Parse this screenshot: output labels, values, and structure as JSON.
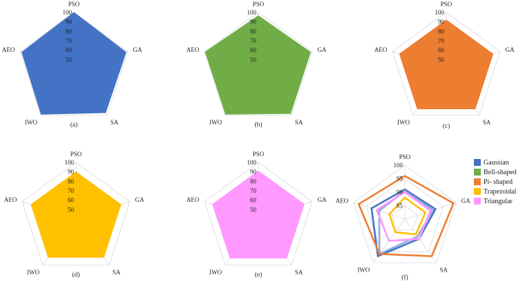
{
  "chart_data": [
    {
      "type": "radar",
      "panel_label": "(a)",
      "series_name": "Gaussian",
      "color": "#4472c4",
      "axes": [
        "PSO",
        "GA",
        "SA",
        "IWO",
        "AEO"
      ],
      "rlim": [
        40,
        100
      ],
      "ticks": [
        50,
        60,
        70,
        80,
        90,
        100
      ],
      "values": [
        100,
        98,
        97,
        99,
        98
      ]
    },
    {
      "type": "radar",
      "panel_label": "(b)",
      "series_name": "Bell-shaped",
      "color": "#70ad47",
      "axes": [
        "PSO",
        "GA",
        "SA",
        "IWO",
        "AEO"
      ],
      "rlim": [
        40,
        100
      ],
      "ticks": [
        50,
        60,
        70,
        80,
        90,
        100
      ],
      "values": [
        96.5,
        98,
        98,
        99,
        99
      ]
    },
    {
      "type": "radar",
      "panel_label": "(c)",
      "series_name": "Pi- shaped",
      "color": "#ed7d31",
      "axes": [
        "PSO",
        "GA",
        "SA",
        "IWO",
        "AEO"
      ],
      "rlim": [
        40,
        100
      ],
      "ticks": [
        50,
        60,
        70,
        80,
        90,
        100
      ],
      "values": [
        92,
        92,
        92,
        92,
        92
      ]
    },
    {
      "type": "radar",
      "panel_label": "(d)",
      "series_name": "Trapezoidal",
      "color": "#ffc000",
      "axes": [
        "PSO",
        "GA",
        "SA",
        "IWO",
        "AEO"
      ],
      "rlim": [
        40,
        100
      ],
      "ticks": [
        50,
        60,
        70,
        80,
        90,
        100
      ],
      "values": [
        90,
        90,
        90,
        90,
        90
      ]
    },
    {
      "type": "radar",
      "panel_label": "(e)",
      "series_name": "Triangular",
      "color": "#ff99ff",
      "axes": [
        "PSO",
        "GA",
        "SA",
        "IWO",
        "AEO"
      ],
      "rlim": [
        40,
        100
      ],
      "ticks": [
        50,
        60,
        70,
        80,
        90,
        100
      ],
      "values": [
        91,
        91,
        91,
        91,
        91
      ]
    },
    {
      "type": "radar",
      "panel_label": "(f)",
      "combined": true,
      "axes": [
        "PSO",
        "GA",
        "SA",
        "IWO",
        "AEO"
      ],
      "rlim": [
        80,
        100
      ],
      "ticks": [
        85,
        90,
        95,
        100
      ],
      "series": [
        {
          "name": "Gaussian",
          "color": "#4472c4",
          "values": [
            91,
            92,
            89,
            97,
            93
          ]
        },
        {
          "name": "Bell-shaped",
          "color": "#8faadc",
          "values": [
            90.5,
            91,
            88,
            96,
            90
          ]
        },
        {
          "name": "Pi- shaped",
          "color": "#ed7d31",
          "values": [
            96,
            99,
            97,
            96,
            98
          ]
        },
        {
          "name": "Trapezoidal",
          "color": "#ffc000",
          "values": [
            88,
            88,
            87,
            86,
            86
          ]
        },
        {
          "name": "Triangular",
          "color": "#ff99ff",
          "values": [
            90,
            90,
            89,
            90,
            91
          ]
        }
      ]
    }
  ],
  "legend": [
    {
      "name": "Gaussian",
      "color": "#4472c4"
    },
    {
      "name": "Bell-shaped",
      "color": "#70ad47"
    },
    {
      "name": "Pi- shaped",
      "color": "#ed7d31"
    },
    {
      "name": "Trapezoidal",
      "color": "#ffc000"
    },
    {
      "name": "Triangular",
      "color": "#ff99ff"
    }
  ]
}
